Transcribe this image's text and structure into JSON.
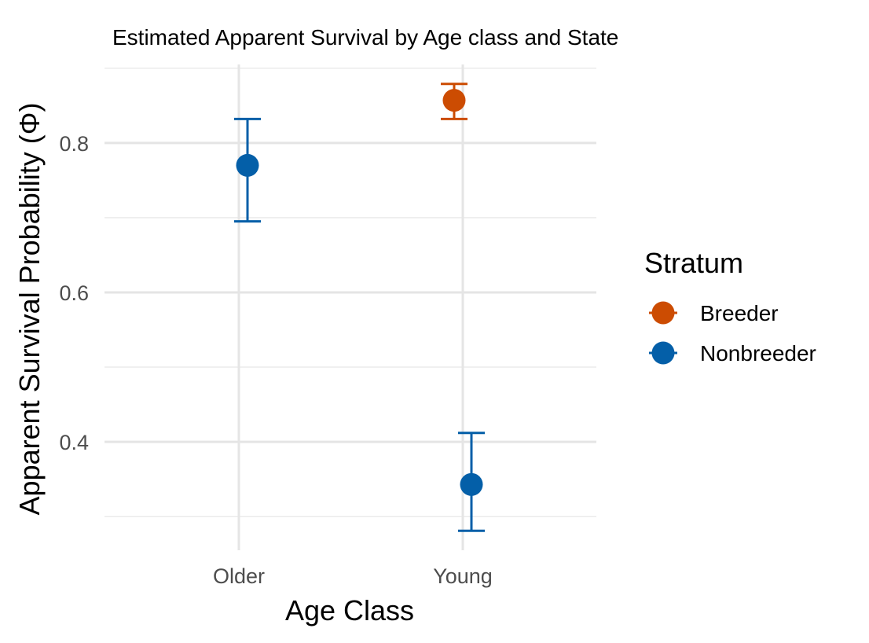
{
  "chart_data": {
    "type": "scatter",
    "title": "Estimated Apparent Survival by Age class and State",
    "xlabel": "Age Class",
    "ylabel": "Apparent Survival Probability (Φ)",
    "categories": [
      "Older",
      "Young"
    ],
    "y_ticks": [
      0.4,
      0.6,
      0.8
    ],
    "y_tick_labels": [
      "0.4",
      "0.6",
      "0.8"
    ],
    "ylim": [
      0.255,
      0.905
    ],
    "grid": true,
    "legend": {
      "title": "Stratum",
      "position": "right",
      "entries": [
        "Breeder",
        "Nonbreeder"
      ]
    },
    "series": [
      {
        "name": "Breeder",
        "color": "#CC4C02",
        "points": [
          {
            "category": "Young",
            "estimate": 0.857,
            "lower": 0.832,
            "upper": 0.879
          }
        ]
      },
      {
        "name": "Nonbreeder",
        "color": "#045FA8",
        "points": [
          {
            "category": "Older",
            "estimate": 0.77,
            "lower": 0.695,
            "upper": 0.832
          },
          {
            "category": "Young",
            "estimate": 0.343,
            "lower": 0.281,
            "upper": 0.412
          }
        ]
      }
    ]
  }
}
